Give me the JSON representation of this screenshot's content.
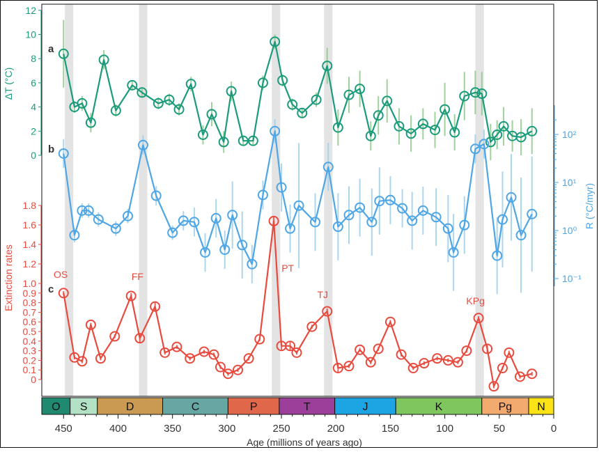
{
  "chart_data": {
    "type": "line",
    "xlabel": "Age (millions of years ago)",
    "xlim": [
      470,
      0
    ],
    "x_ticks": [
      "450",
      "400",
      "350",
      "300",
      "250",
      "200",
      "150",
      "100",
      "50",
      "0"
    ],
    "extinction_events": [
      {
        "label": "OS",
        "age": 445
      },
      {
        "label": "FF",
        "age": 377
      },
      {
        "label": "PT",
        "age": 255
      },
      {
        "label": "TJ",
        "age": 207
      },
      {
        "label": "KPg",
        "age": 68
      }
    ],
    "periods": [
      {
        "label": "O",
        "start": 470,
        "end": 444,
        "color": "#1f8a6f"
      },
      {
        "label": "S",
        "start": 444,
        "end": 419,
        "color": "#b3e1c6"
      },
      {
        "label": "D",
        "start": 419,
        "end": 359,
        "color": "#cb9a52"
      },
      {
        "label": "C",
        "start": 359,
        "end": 299,
        "color": "#66a6a3"
      },
      {
        "label": "P",
        "start": 299,
        "end": 252,
        "color": "#e0674a"
      },
      {
        "label": "T",
        "start": 252,
        "end": 201,
        "color": "#9b3f9b"
      },
      {
        "label": "J",
        "start": 201,
        "end": 145,
        "color": "#1ca5e2"
      },
      {
        "label": "K",
        "start": 145,
        "end": 66,
        "color": "#7fc65f"
      },
      {
        "label": "Pg",
        "start": 66,
        "end": 23,
        "color": "#f2aa6f"
      },
      {
        "label": "N",
        "start": 23,
        "end": 0,
        "color": "#fbe316"
      }
    ],
    "panels": [
      {
        "id": "a",
        "panel_label": "a",
        "ylabel": "ΔT (°C)",
        "ylim": [
          0,
          12
        ],
        "y_ticks": [
          "0",
          "2",
          "4",
          "6",
          "8",
          "10",
          "12"
        ],
        "color": "#1a9b7b",
        "error_color": "#8fcb8a",
        "x": [
          450,
          440,
          433,
          425,
          413,
          402,
          387,
          378,
          363,
          353,
          344,
          333,
          322,
          314,
          303,
          296,
          285,
          276,
          267,
          256,
          249,
          240,
          231,
          218,
          208,
          198,
          188,
          178,
          168,
          161,
          153,
          142,
          131,
          120,
          109,
          100,
          91,
          82,
          72,
          66,
          58,
          52,
          46,
          38,
          30,
          20
        ],
        "y": [
          8.4,
          4.0,
          4.3,
          2.7,
          7.9,
          3.7,
          5.8,
          5.2,
          4.3,
          4.6,
          3.8,
          5.9,
          1.7,
          3.4,
          1.1,
          5.3,
          1.2,
          1.2,
          6.0,
          9.4,
          6.2,
          4.2,
          3.5,
          4.6,
          7.4,
          2.3,
          5.0,
          5.5,
          1.6,
          3.3,
          4.5,
          2.4,
          1.8,
          2.6,
          2.1,
          3.8,
          1.9,
          4.9,
          5.2,
          5.1,
          1.1,
          1.7,
          2.4,
          1.6,
          1.5,
          2.0
        ],
        "err": [
          2.8,
          0.5,
          0.6,
          0.8,
          0.8,
          0.5,
          0.4,
          0.3,
          0.5,
          0.5,
          0.5,
          0.6,
          0.8,
          1.0,
          0.9,
          0.8,
          0.4,
          0.4,
          0.6,
          0.6,
          0.5,
          0.5,
          0.4,
          0.6,
          1.5,
          1.5,
          1.5,
          1.5,
          1.2,
          1.6,
          1.8,
          1.5,
          1.5,
          1.3,
          1.5,
          2.2,
          1.5,
          2.0,
          1.8,
          1.8,
          1.5,
          1.2,
          1.6,
          1.3,
          1.5,
          1.9
        ]
      },
      {
        "id": "b",
        "panel_label": "b",
        "ylabel": "R (°C/myr)",
        "axis_side": "right",
        "scale": "log",
        "ylim_log10": [
          -1.6,
          2.3
        ],
        "y_ticks": [
          "10⁻¹",
          "10⁰",
          "10¹",
          "10²"
        ],
        "y_tick_values": [
          0.1,
          1,
          10,
          100
        ],
        "left_zero_label": "0",
        "color": "#4ea6e6",
        "error_color": "#9ed0ec",
        "x": [
          450,
          440,
          433,
          427,
          418,
          402,
          391,
          377,
          365,
          350,
          340,
          330,
          320,
          310,
          302,
          295,
          286,
          277,
          267,
          256,
          250,
          242,
          234,
          219,
          207,
          198,
          188,
          178,
          167,
          160,
          150,
          139,
          130,
          120,
          108,
          97,
          92,
          82,
          72,
          64,
          52,
          47,
          39,
          30,
          20
        ],
        "y": [
          40,
          0.8,
          2.6,
          2.6,
          1.7,
          1.1,
          2.0,
          60,
          5.3,
          0.9,
          1.6,
          1.5,
          0.35,
          1.8,
          0.4,
          2.1,
          0.5,
          0.2,
          5.5,
          117,
          7.9,
          1.1,
          3.3,
          1.5,
          21,
          1.2,
          2.1,
          3.0,
          1.5,
          4.1,
          4.3,
          2.9,
          1.6,
          2.6,
          1.9,
          1.1,
          0.35,
          1.3,
          50,
          63,
          0.3,
          1.7,
          4.9,
          0.8,
          2.2
        ],
        "err_log": [
          0.3,
          0.15,
          0.15,
          0.15,
          0.15,
          0.15,
          0.15,
          0.2,
          0.2,
          0.15,
          0.2,
          0.3,
          0.4,
          0.4,
          0.4,
          0.7,
          0.7,
          0.4,
          0.3,
          0.25,
          0.5,
          0.5,
          1.3,
          0.6,
          0.5,
          0.7,
          0.6,
          0.6,
          0.7,
          0.7,
          0.5,
          0.4,
          0.6,
          0.5,
          0.6,
          0.7,
          0.8,
          0.6,
          0.3,
          0.3,
          0.8,
          1.0,
          0.9,
          1.2,
          1.2
        ]
      },
      {
        "id": "c",
        "panel_label": "c",
        "ylabel": "Extinction rates",
        "ylim": [
          0,
          1.8
        ],
        "y_ticks": [
          "0",
          "0.1",
          "0.2",
          "0.3",
          "0.4",
          "0.5",
          "0.6",
          "0.7",
          "0.8",
          "0.9",
          "1.0",
          "1.2",
          "1.4",
          "1.6",
          "1.8"
        ],
        "color": "#e84a3e",
        "error_color": "#e84a3e",
        "x": [
          450,
          440,
          433,
          425,
          416,
          403,
          388,
          380,
          366,
          357,
          346,
          334,
          321,
          312,
          306,
          299,
          290,
          280,
          270,
          257,
          250,
          242,
          236,
          222,
          208,
          198,
          188,
          178,
          168,
          161,
          150,
          140,
          129,
          119,
          107,
          97,
          88,
          80,
          69,
          61,
          55,
          47,
          41,
          31,
          20
        ],
        "y": [
          0.9,
          0.23,
          0.19,
          0.57,
          0.22,
          0.45,
          0.87,
          0.43,
          0.76,
          0.28,
          0.34,
          0.22,
          0.29,
          0.26,
          0.13,
          0.06,
          0.1,
          0.22,
          0.42,
          1.64,
          0.35,
          0.35,
          0.28,
          0.55,
          0.71,
          0.12,
          0.14,
          0.31,
          0.18,
          0.32,
          0.6,
          0.26,
          0.12,
          0.17,
          0.22,
          0.2,
          0.18,
          0.3,
          0.64,
          0.32,
          -0.07,
          0.12,
          0.28,
          0.03,
          0.06
        ],
        "err": [
          0.02,
          0.02,
          0.02,
          0.02,
          0.02,
          0.02,
          0.03,
          0.05,
          0.04,
          0.02,
          0.02,
          0.02,
          0.02,
          0.02,
          0.02,
          0.02,
          0.02,
          0.02,
          0.02,
          0.05,
          0.04,
          0.04,
          0.02,
          0.02,
          0.03,
          0.04,
          0.02,
          0.02,
          0.02,
          0.02,
          0.02,
          0.02,
          0.02,
          0.02,
          0.02,
          0.02,
          0.02,
          0.02,
          0.02,
          0.04,
          0.02,
          0.02,
          0.02,
          0.02,
          0.02
        ]
      }
    ]
  }
}
